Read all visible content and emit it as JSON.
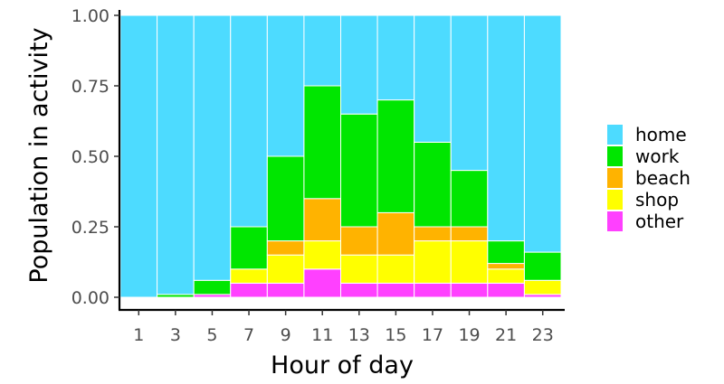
{
  "chart_data": {
    "type": "bar",
    "stacked": true,
    "xlabel": "Hour of day",
    "ylabel": "Population in activity",
    "ylim": [
      0,
      1
    ],
    "yticks": [
      "0.00",
      "0.25",
      "0.50",
      "0.75",
      "1.00"
    ],
    "hours": [
      1,
      3,
      5,
      7,
      9,
      11,
      13,
      15,
      17,
      19,
      21,
      23
    ],
    "legend_position": "right",
    "series": [
      {
        "name": "other",
        "color": "#FF40FF",
        "values": [
          0,
          0,
          0.01,
          0.05,
          0.05,
          0.1,
          0.05,
          0.05,
          0.05,
          0.05,
          0.05,
          0.01
        ]
      },
      {
        "name": "shop",
        "color": "#FFFF00",
        "values": [
          0,
          0,
          0,
          0.05,
          0.1,
          0.1,
          0.1,
          0.1,
          0.15,
          0.15,
          0.05,
          0.05
        ]
      },
      {
        "name": "beach",
        "color": "#FFB300",
        "values": [
          0,
          0,
          0,
          0,
          0.05,
          0.15,
          0.1,
          0.15,
          0.05,
          0.05,
          0.02,
          0
        ]
      },
      {
        "name": "work",
        "color": "#00E600",
        "values": [
          0,
          0.01,
          0.05,
          0.15,
          0.3,
          0.4,
          0.4,
          0.4,
          0.3,
          0.2,
          0.08,
          0.1
        ]
      },
      {
        "name": "home",
        "color": "#4DDBFF",
        "values": [
          1.0,
          0.99,
          0.94,
          0.75,
          0.5,
          0.25,
          0.35,
          0.3,
          0.45,
          0.55,
          0.8,
          0.84
        ]
      }
    ],
    "legend_order": [
      "home",
      "work",
      "beach",
      "shop",
      "other"
    ]
  }
}
